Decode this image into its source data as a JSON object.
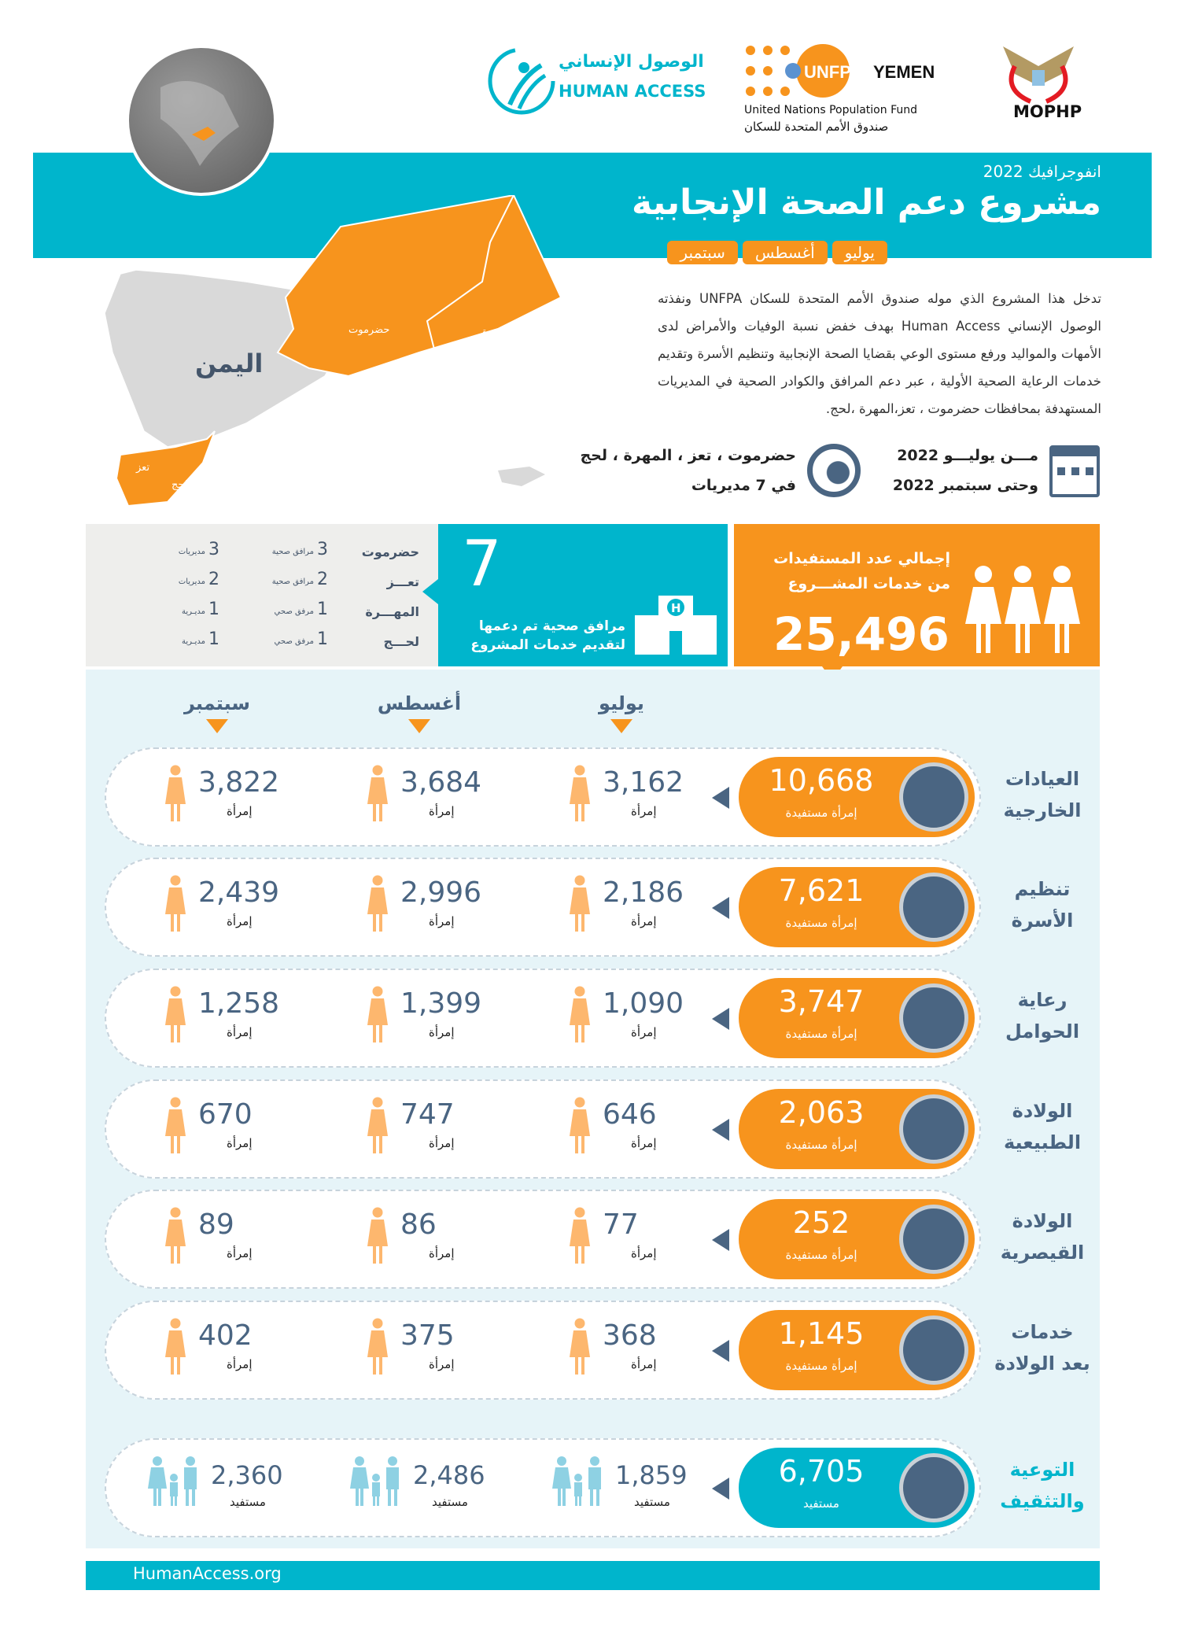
{
  "logos": {
    "human_access_ar": "الوصول الإنساني",
    "human_access_en": "HUMAN ACCESS",
    "unfpa": "UNFPA",
    "yemen": "YEMEN",
    "unfpa_en": "United Nations Population Fund",
    "unfpa_ar": "صندوق الأمم المتحدة للسكان",
    "mophp": "MOPHP"
  },
  "header": {
    "subtitle": "انفوجرافيك 2022",
    "title": "مشروع دعم الصحة الإنجابية",
    "months": [
      "يوليو",
      "أغسطس",
      "سبتمبر"
    ]
  },
  "map": {
    "country": "اليمن",
    "regions": [
      "حضرموت",
      "المهرة",
      "تعز",
      "لحج"
    ]
  },
  "description": "تدخل هذا المشروع الذي موله صندوق الأمم المتحدة للسكان UNFPA ونفذته الوصول الإنساني Human Access بهدف خفض نسبة الوفيات والأمراض لدى الأمهات والمواليد ورفع مستوى الوعي بقضايا الصحة الإنجابية وتنظيم الأسرة وتقديم خدمات الرعاية الصحية الأولية ، عبر دعم المرافق والكوادر الصحية في المديريات المستهدفة بمحافظات حضرموت ، تعز،المهرة ،لحج.",
  "period": {
    "from": "مـــن يوليـــو 2022",
    "to": "وحتى سبتمبر 2022",
    "locations": "حضرموت ، تعز ، المهرة ، لحج",
    "districts": "في 7 مديريات"
  },
  "total": {
    "label1": "إجمالي عدد المستفيدات",
    "label2": "من خدمات المشـــروع",
    "value": "25,496"
  },
  "facilities": {
    "value": "7",
    "label1": "مرافق صحية تم دعمها",
    "label2": "لتقديم خدمات المشروع"
  },
  "governorates": [
    {
      "name": "حضرموت",
      "facilities": "3",
      "facilities_label": "مرافق صحية",
      "districts": "3",
      "districts_label": "مديريات"
    },
    {
      "name": "تعـــز",
      "facilities": "2",
      "facilities_label": "مرافق صحية",
      "districts": "2",
      "districts_label": "مديريات"
    },
    {
      "name": "المهـــرة",
      "facilities": "1",
      "facilities_label": "مرفق صحي",
      "districts": "1",
      "districts_label": "مديـرية"
    },
    {
      "name": "لحـــج",
      "facilities": "1",
      "facilities_label": "مرفق صحي",
      "districts": "1",
      "districts_label": "مديـرية"
    }
  ],
  "columns": [
    "يوليو",
    "أغسطس",
    "سبتمبر"
  ],
  "services": [
    {
      "name1": "العيادات",
      "name2": "الخارجية",
      "icon": "stethoscope-icon",
      "total": "10,668",
      "total_label": "إمرأة مستفيدة",
      "values": [
        "3,162",
        "3,684",
        "3,822"
      ],
      "unit": "إمرأة"
    },
    {
      "name1": "تنظيم",
      "name2": "الأسرة",
      "icon": "family-icon",
      "total": "7,621",
      "total_label": "إمرأة مستفيدة",
      "values": [
        "2,186",
        "2,996",
        "2,439"
      ],
      "unit": "إمرأة"
    },
    {
      "name1": "رعاية",
      "name2": "الحوامل",
      "icon": "pregnant-woman-icon",
      "total": "3,747",
      "total_label": "إمرأة مستفيدة",
      "values": [
        "1,090",
        "1,399",
        "1,258"
      ],
      "unit": "إمرأة"
    },
    {
      "name1": "الولادة",
      "name2": "الطبيعية",
      "icon": "natural-birth-icon",
      "total": "2,063",
      "total_label": "إمرأة مستفيدة",
      "values": [
        "646",
        "747",
        "670"
      ],
      "unit": "إمرأة"
    },
    {
      "name1": "الولادة",
      "name2": "القيصرية",
      "icon": "cesarean-icon",
      "total": "252",
      "total_label": "إمرأة مستفيدة",
      "values": [
        "77",
        "86",
        "89"
      ],
      "unit": "إمرأة"
    },
    {
      "name1": "خدمات",
      "name2": "بعد الولادة",
      "icon": "mother-baby-icon",
      "total": "1,145",
      "total_label": "إمرأة مستفيدة",
      "values": [
        "368",
        "375",
        "402"
      ],
      "unit": "إمرأة"
    },
    {
      "name1": "التوعية",
      "name2": "والتثقيف",
      "icon": "megaphone-icon",
      "total": "6,705",
      "total_label": "مستفيد",
      "values": [
        "1,859",
        "2,486",
        "2,360"
      ],
      "unit": "مستفيد"
    }
  ],
  "colors": {
    "teal": "#00b5cc",
    "orange": "#f7941d",
    "slate": "#4a6582",
    "panel": "#e6f4f8"
  },
  "footer": {
    "url": "HumanAccess.org"
  }
}
